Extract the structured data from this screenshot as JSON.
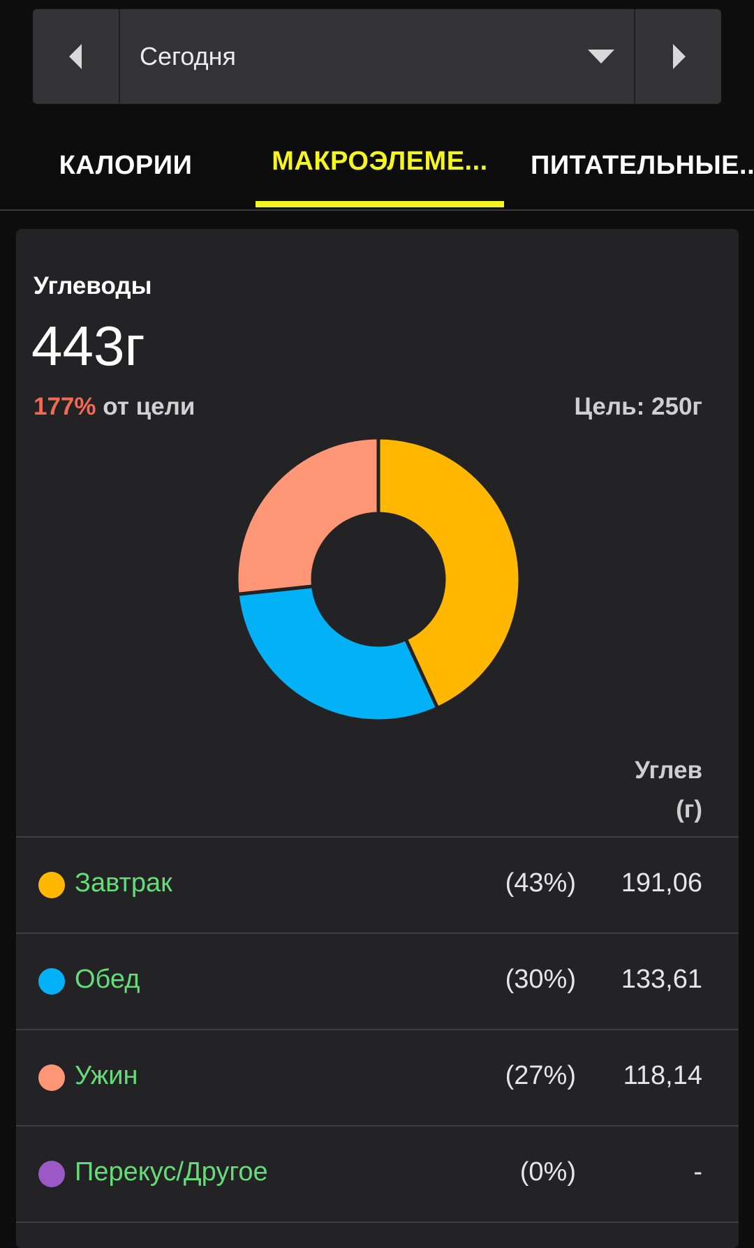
{
  "date_selector": {
    "label": "Сегодня"
  },
  "tabs": [
    {
      "label": "КАЛОРИИ",
      "active": false
    },
    {
      "label": "МАКРОЭЛЕМЕ...",
      "active": true
    },
    {
      "label": "ПИТАТЕЛЬНЫЕ..."
    }
  ],
  "summary": {
    "macro_name": "Углеводы",
    "amount": "443г",
    "percent": "177%",
    "percent_suffix": " от цели",
    "goal": "Цель: 250г"
  },
  "table": {
    "column_header_line1": "Углев",
    "column_header_line2": "(г)"
  },
  "chart_data": {
    "type": "pie",
    "categories": [
      "Завтрак",
      "Обед",
      "Ужин",
      "Перекус/Другое"
    ],
    "values": [
      191.06,
      133.61,
      118.14,
      0
    ],
    "percents": [
      "(43%)",
      "(30%)",
      "(27%)",
      "(0%)"
    ],
    "display_values": [
      "191,06",
      "133,61",
      "118,14",
      "-"
    ],
    "colors": [
      "#ffb700",
      "#03b2f6",
      "#ff9675",
      "#9b59c6"
    ]
  },
  "colors": {
    "accent": "#f5f520",
    "over_goal": "#f06a55",
    "meal_text": "#64dc78"
  }
}
